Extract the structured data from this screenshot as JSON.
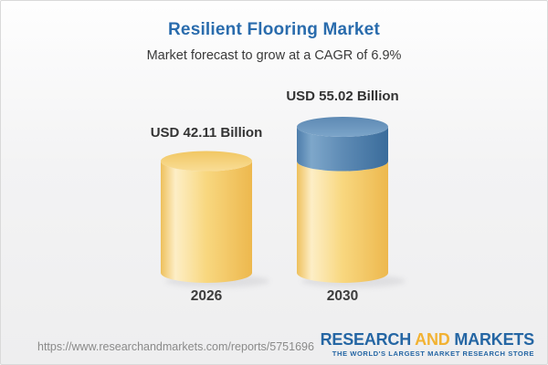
{
  "header": {
    "title": "Resilient Flooring Market",
    "subtitle": "Market forecast to grow at a CAGR of 6.9%"
  },
  "chart_data": {
    "type": "bar",
    "variant": "3d-cylinder",
    "title": "Resilient Flooring Market",
    "unit": "USD Billion",
    "cagr_pct": 6.9,
    "categories": [
      "2026",
      "2030"
    ],
    "values": [
      42.11,
      55.02
    ],
    "ylim": [
      0,
      55.02
    ],
    "legend": "none",
    "grid": "off",
    "bars": [
      {
        "category": "2026",
        "value": 42.11,
        "label": "USD 42.11 Billion",
        "segments": [
          {
            "value": 42.11,
            "color": "gold"
          }
        ]
      },
      {
        "category": "2030",
        "value": 55.02,
        "label": "USD 55.02 Billion",
        "segments": [
          {
            "value": 42.11,
            "color": "gold"
          },
          {
            "value": 12.91,
            "color": "blue"
          }
        ]
      }
    ],
    "colors": {
      "gold": "#f6d17b",
      "blue": "#5e8bb5"
    }
  },
  "footer": {
    "url": "https://www.researchandmarkets.com/reports/5751696",
    "logo": {
      "research": "RESEARCH",
      "and": "AND",
      "markets": "MARKETS",
      "tagline": "THE WORLD'S LARGEST MARKET RESEARCH STORE"
    }
  }
}
